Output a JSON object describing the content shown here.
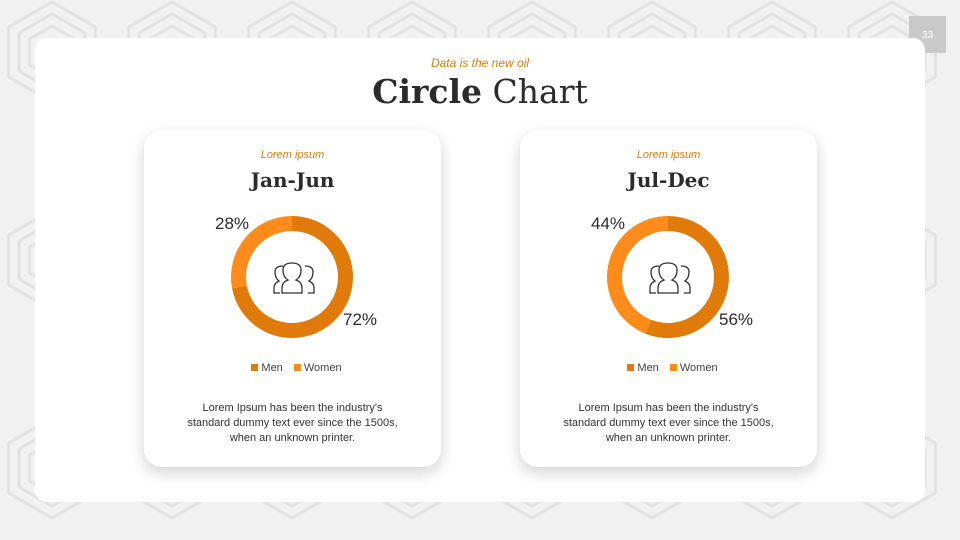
{
  "page_number": "33",
  "header": {
    "subtitle": "Data is the new oil",
    "title_bold": "Circle",
    "title_rest": "Chart"
  },
  "colors": {
    "men": "#E07B0A",
    "women": "#FF8C1A",
    "accent": "#E07B0A"
  },
  "center_icon": "users-group-icon",
  "chart_data": [
    {
      "type": "pie",
      "donut": true,
      "label": "Lorem ipsum",
      "title": "Jan-Jun",
      "categories": [
        "Men",
        "Women"
      ],
      "values": [
        72,
        28
      ],
      "data_labels": [
        "72%",
        "28%"
      ],
      "legend": "bottom",
      "description": "Lorem Ipsum has been the industry's standard dummy text ever since the 1500s, when an unknown printer."
    },
    {
      "type": "pie",
      "donut": true,
      "label": "Lorem ipsum",
      "title": "Jul-Dec",
      "categories": [
        "Men",
        "Women"
      ],
      "values": [
        56,
        44
      ],
      "data_labels": [
        "56%",
        "44%"
      ],
      "legend": "bottom",
      "description": "Lorem Ipsum has been the industry's standard dummy text ever since the 1500s, when an unknown printer."
    }
  ]
}
